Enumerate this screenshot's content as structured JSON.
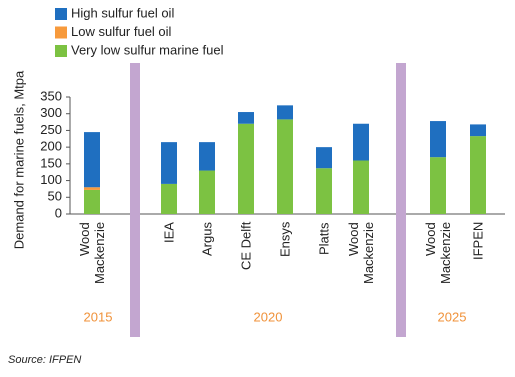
{
  "chart_data": {
    "type": "stacked-bar",
    "y_label": "Demand for marine fuels, Mtpa",
    "categories": [
      "Wood Mackenzie",
      "IEA",
      "Argus",
      "CE Delft",
      "Ensys",
      "Platts",
      "Wood Mackenzie",
      "Wood Mackenzie",
      "IFPEN"
    ],
    "groups": [
      "2015",
      "2020",
      "2025"
    ],
    "series": [
      {
        "name": "High sulfur fuel oil",
        "color": "#1f6fc0",
        "values": [
          165,
          125,
          85,
          35,
          42,
          63,
          110,
          108,
          35
        ]
      },
      {
        "name": "Low sulfur fuel oil",
        "color": "#f79a3c",
        "values": [
          8,
          0,
          0,
          0,
          0,
          0,
          0,
          0,
          0
        ]
      },
      {
        "name": "Very low sulfur marine fuel",
        "color": "#7cc242",
        "values": [
          72,
          90,
          130,
          270,
          283,
          137,
          160,
          170,
          233
        ]
      }
    ],
    "ylim": [
      0,
      350
    ],
    "yticks": [
      0,
      50,
      100,
      150,
      200,
      250,
      300,
      350
    ],
    "source": "Source: IFPEN"
  }
}
